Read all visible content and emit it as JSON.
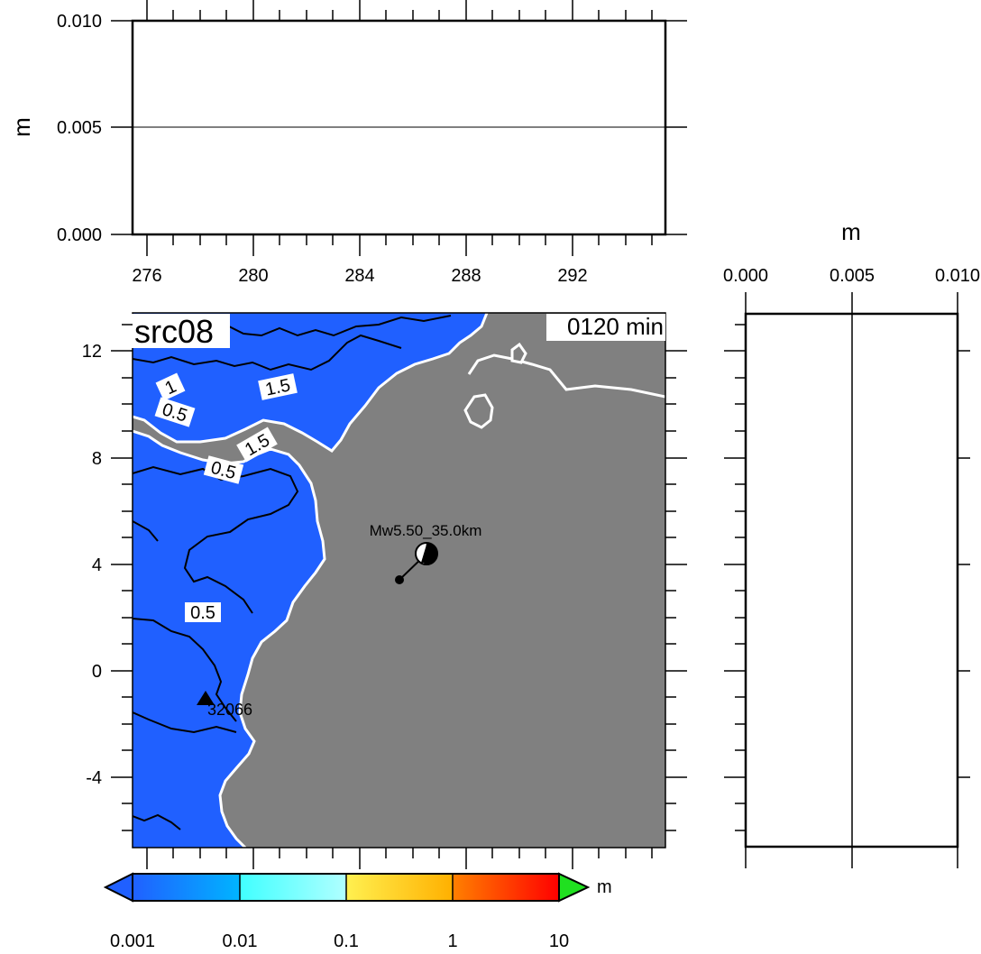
{
  "top_panel": {
    "ylabel": "m",
    "yticks": [
      "0.010",
      "0.005",
      "0.000"
    ],
    "xticks": [
      "276",
      "280",
      "284",
      "288",
      "292"
    ]
  },
  "right_panel": {
    "xlabel": "m",
    "xticks": [
      "0.000",
      "0.005",
      "0.010"
    ]
  },
  "map": {
    "title": "src08",
    "time_label": "0120 min",
    "yticks": [
      "12",
      "8",
      "4",
      "0",
      "-4"
    ],
    "source_label": "Mw5.50_35.0km",
    "station_label": "32066",
    "contour_labels": [
      "1",
      "0.5",
      "1.5",
      "1.5",
      "0.5",
      "0.5"
    ],
    "colors": {
      "sea": "#2060ff",
      "land": "#808080",
      "coast": "#ffffff"
    }
  },
  "colorbar": {
    "unit": "m",
    "ticks": [
      "0.001",
      "0.01",
      "0.1",
      "1",
      "10"
    ],
    "colors": [
      "#2060ff",
      "#00b4ff",
      "#40ffff",
      "#fff050",
      "#ffa000",
      "#ff3000",
      "#ff0000",
      "#20e020"
    ]
  }
}
